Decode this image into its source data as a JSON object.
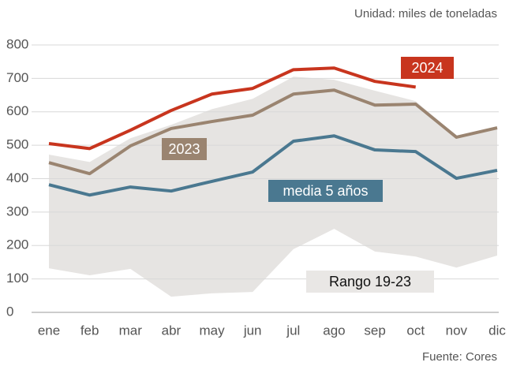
{
  "chart_data": {
    "type": "line",
    "unit_note": "Unidad: miles de toneladas",
    "source": "Fuente: Cores",
    "categories": [
      "ene",
      "feb",
      "mar",
      "abr",
      "may",
      "jun",
      "jul",
      "ago",
      "sep",
      "oct",
      "nov",
      "dic"
    ],
    "ylim": [
      0,
      800
    ],
    "yticks": [
      0,
      100,
      200,
      300,
      400,
      500,
      600,
      700,
      800
    ],
    "grid": true,
    "series": [
      {
        "name": "Rango 19-23",
        "color": "#e6e4e2",
        "low": [
          132,
          111,
          130,
          47,
          57,
          61,
          189,
          250,
          182,
          167,
          134,
          170
        ],
        "high": [
          472,
          450,
          521,
          561,
          608,
          639,
          705,
          696,
          663,
          632,
          528,
          557
        ]
      },
      {
        "name": "media 5 años",
        "color": "#4a7890",
        "values": [
          382,
          351,
          375,
          363,
          392,
          420,
          512,
          528,
          486,
          481,
          401,
          425
        ]
      },
      {
        "name": "2023",
        "color": "#9a8470",
        "values": [
          448,
          415,
          498,
          550,
          571,
          590,
          653,
          665,
          620,
          623,
          524,
          552
        ]
      },
      {
        "name": "2024",
        "color": "#c8351e",
        "values": [
          505,
          490,
          545,
          604,
          653,
          670,
          726,
          731,
          691,
          674,
          null,
          null
        ]
      }
    ]
  }
}
